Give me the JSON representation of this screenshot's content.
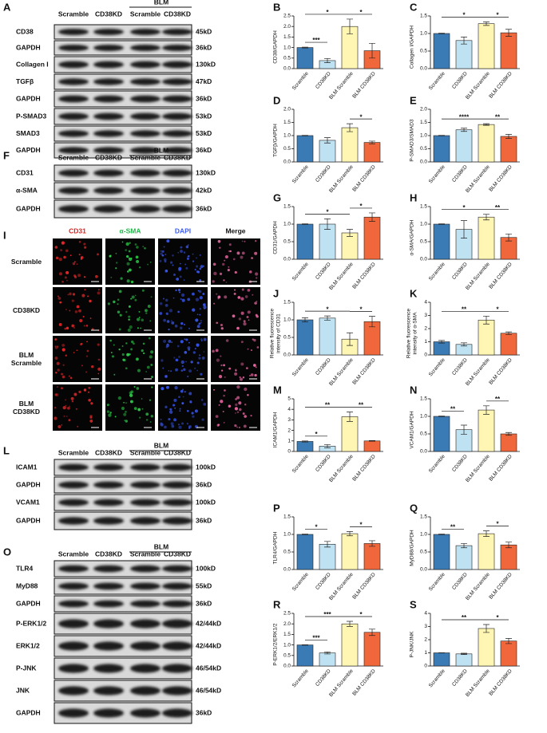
{
  "blots": [
    {
      "label": "A",
      "columns": [
        "Scramble",
        "CD38KD",
        "Scramble",
        "CD38KD"
      ],
      "group": "BLM",
      "rows": [
        {
          "name": "CD38",
          "size": "45kD"
        },
        {
          "name": "GAPDH",
          "size": "36kD"
        },
        {
          "name": "Collagen I",
          "size": "130kD"
        },
        {
          "name": "TGFβ",
          "size": "47kD"
        },
        {
          "name": "GAPDH",
          "size": "36kD"
        },
        {
          "name": "P-SMAD3",
          "size": "53kD"
        },
        {
          "name": "SMAD3",
          "size": "53kD"
        },
        {
          "name": "GAPDH",
          "size": "36kD"
        }
      ]
    },
    {
      "label": "F",
      "columns": [
        "Scramble",
        "CD38KD",
        "Scramble",
        "CD38KD"
      ],
      "group": "BLM",
      "rows": [
        {
          "name": "CD31",
          "size": "130kD"
        },
        {
          "name": "α-SMA",
          "size": "42kD"
        },
        {
          "name": "GAPDH",
          "size": "36kD"
        }
      ]
    },
    {
      "label": "L",
      "columns": [
        "Scramble",
        "CD38KD",
        "Scramble",
        "CD38KD"
      ],
      "group": "BLM",
      "rows": [
        {
          "name": "ICAM1",
          "size": "100kD"
        },
        {
          "name": "GAPDH",
          "size": "36kD"
        },
        {
          "name": "VCAM1",
          "size": "100kD"
        },
        {
          "name": "GAPDH",
          "size": "36kD"
        }
      ]
    },
    {
      "label": "O",
      "columns": [
        "Scramble",
        "CD38KD",
        "Scramble",
        "CD38KD"
      ],
      "group": "BLM",
      "rows": [
        {
          "name": "TLR4",
          "size": "100kD"
        },
        {
          "name": "MyD88",
          "size": "55kD"
        },
        {
          "name": "GAPDH",
          "size": "36kD"
        },
        {
          "name": "P-ERK1/2",
          "size": "42/44kD"
        },
        {
          "name": "ERK1/2",
          "size": "42/44kD"
        },
        {
          "name": "P-JNK",
          "size": "46/54kD"
        },
        {
          "name": "JNK",
          "size": "46/54kD"
        },
        {
          "name": "GAPDH",
          "size": "36kD"
        }
      ]
    }
  ],
  "fluorescence": {
    "label": "I",
    "channels": [
      "CD31",
      "α-SMA",
      "DAPI",
      "Merge"
    ],
    "rows": [
      [
        "Scramble"
      ],
      [
        "CD38KD"
      ],
      [
        "BLM",
        "Scramble"
      ],
      [
        "BLM",
        "CD38KD"
      ]
    ]
  },
  "chart_data": [
    {
      "type": "bar",
      "label": "B",
      "ylabel": [
        "CD38/GAPDH"
      ],
      "categories": [
        "Scramble",
        "CD38KD",
        "BLM Scramble",
        "BLM CD38KD"
      ],
      "values": [
        1.0,
        0.38,
        2.0,
        0.85
      ],
      "errors": [
        0.02,
        0.1,
        0.35,
        0.35
      ],
      "colors": [
        "#3b7bb5",
        "#bfe2f2",
        "#fff6b3",
        "#f0673b"
      ],
      "ylim": [
        0,
        2.5
      ],
      "yticks": [
        {
          "value": 0,
          "label": "0.0"
        },
        0.5,
        {
          "value": 1,
          "label": "1.0"
        },
        1.5,
        {
          "value": 2,
          "label": "2.0"
        },
        2.5
      ],
      "significance": [
        {
          "from": 0,
          "to": 1,
          "label": "***"
        },
        {
          "from": 0,
          "to": 2,
          "label": "*"
        },
        {
          "from": 2,
          "to": 3,
          "label": "*"
        }
      ]
    },
    {
      "type": "bar",
      "label": "C",
      "ylabel": [
        "Collagen I/GAPDH"
      ],
      "categories": [
        "Scramble",
        "CD38KD",
        "BLM Scramble",
        "BLM CD38KD"
      ],
      "values": [
        1.0,
        0.8,
        1.28,
        1.02
      ],
      "errors": [
        0.01,
        0.1,
        0.05,
        0.1
      ],
      "colors": [
        "#3b7bb5",
        "#bfe2f2",
        "#fff6b3",
        "#f0673b"
      ],
      "ylim": [
        0,
        1.5
      ],
      "yticks": [
        {
          "value": 0,
          "label": "0.0"
        },
        0.5,
        {
          "value": 1,
          "label": "1.0"
        },
        1.5
      ],
      "significance": [
        {
          "from": 0,
          "to": 2,
          "label": "*"
        },
        {
          "from": 2,
          "to": 3,
          "label": "*"
        }
      ]
    },
    {
      "type": "bar",
      "label": "D",
      "ylabel": [
        "TGFβ/GAPDH"
      ],
      "categories": [
        "Scramble",
        "CD38KD",
        "BLM Scramble",
        "BLM CD38KD"
      ],
      "values": [
        1.0,
        0.82,
        1.3,
        0.74
      ],
      "errors": [
        0.01,
        0.1,
        0.15,
        0.05
      ],
      "colors": [
        "#3b7bb5",
        "#bfe2f2",
        "#fff6b3",
        "#f0673b"
      ],
      "ylim": [
        0,
        2
      ],
      "yticks": [
        {
          "value": 0,
          "label": "0.0"
        },
        0.5,
        {
          "value": 1,
          "label": "1.0"
        },
        1.5,
        {
          "value": 2,
          "label": "2.0"
        }
      ],
      "significance": [
        {
          "from": 2,
          "to": 3,
          "label": "*"
        }
      ]
    },
    {
      "type": "bar",
      "label": "E",
      "ylabel": [
        "P-SMAD3/SMAD3"
      ],
      "categories": [
        "Scramble",
        "CD38KD",
        "BLM Scramble",
        "BLM CD38KD"
      ],
      "values": [
        1.0,
        1.22,
        1.42,
        0.97
      ],
      "errors": [
        0.01,
        0.06,
        0.03,
        0.08
      ],
      "colors": [
        "#3b7bb5",
        "#bfe2f2",
        "#fff6b3",
        "#f0673b"
      ],
      "ylim": [
        0,
        2
      ],
      "yticks": [
        {
          "value": 0,
          "label": "0.0"
        },
        0.5,
        {
          "value": 1,
          "label": "1.0"
        },
        1.5,
        {
          "value": 2,
          "label": "2.0"
        }
      ],
      "significance": [
        {
          "from": 0,
          "to": 2,
          "label": "****"
        },
        {
          "from": 2,
          "to": 3,
          "label": "**"
        }
      ]
    },
    {
      "type": "bar",
      "label": "G",
      "ylabel": [
        "CD31/GAPDH"
      ],
      "categories": [
        "Scramble",
        "CD38KD",
        "BLM Scramble",
        "BLM CD38KD"
      ],
      "values": [
        1.0,
        1.0,
        0.75,
        1.2
      ],
      "errors": [
        0.01,
        0.15,
        0.1,
        0.12
      ],
      "colors": [
        "#3b7bb5",
        "#bfe2f2",
        "#fff6b3",
        "#f0673b"
      ],
      "ylim": [
        0,
        1.5
      ],
      "yticks": [
        {
          "value": 0,
          "label": "0.0"
        },
        0.5,
        {
          "value": 1,
          "label": "1.0"
        },
        1.5
      ],
      "significance": [
        {
          "from": 0,
          "to": 2,
          "label": "*"
        },
        {
          "from": 2,
          "to": 3,
          "label": "*"
        }
      ]
    },
    {
      "type": "bar",
      "label": "H",
      "ylabel": [
        "α-SMA/GAPDH"
      ],
      "categories": [
        "Scramble",
        "CD38KD",
        "BLM Scramble",
        "BLM CD38KD"
      ],
      "values": [
        1.0,
        0.85,
        1.2,
        0.62
      ],
      "errors": [
        0.01,
        0.25,
        0.08,
        0.1
      ],
      "colors": [
        "#3b7bb5",
        "#bfe2f2",
        "#fff6b3",
        "#f0673b"
      ],
      "ylim": [
        0,
        1.5
      ],
      "yticks": [
        {
          "value": 0,
          "label": "0.0"
        },
        0.5,
        {
          "value": 1,
          "label": "1.0"
        },
        1.5
      ],
      "significance": [
        {
          "from": 0,
          "to": 2,
          "label": "*"
        },
        {
          "from": 2,
          "to": 3,
          "label": "**"
        }
      ]
    },
    {
      "type": "bar",
      "label": "J",
      "ylabel": [
        "Relative fluorescence",
        "intensity of CD31"
      ],
      "categories": [
        "Scramble",
        "CD38KD",
        "BLM Scramble",
        "BLM CD38KD"
      ],
      "values": [
        1.0,
        1.05,
        0.45,
        0.95
      ],
      "errors": [
        0.06,
        0.06,
        0.18,
        0.15
      ],
      "colors": [
        "#3b7bb5",
        "#bfe2f2",
        "#fff6b3",
        "#f0673b"
      ],
      "ylim": [
        0,
        1.5
      ],
      "yticks": [
        {
          "value": 0,
          "label": "0.0"
        },
        0.5,
        {
          "value": 1,
          "label": "1.0"
        },
        1.5
      ],
      "significance": [
        {
          "from": 0,
          "to": 2,
          "label": "*"
        },
        {
          "from": 2,
          "to": 3,
          "label": "*"
        }
      ]
    },
    {
      "type": "bar",
      "label": "K",
      "ylabel": [
        "Relative fluorescence",
        "intensity of α-SMA"
      ],
      "categories": [
        "Scramble",
        "CD38KD",
        "BLM Scramble",
        "BLM CD38KD"
      ],
      "values": [
        1.0,
        0.8,
        2.65,
        1.65
      ],
      "errors": [
        0.1,
        0.12,
        0.3,
        0.1
      ],
      "colors": [
        "#3b7bb5",
        "#bfe2f2",
        "#fff6b3",
        "#f0673b"
      ],
      "ylim": [
        0,
        4
      ],
      "yticks": [
        0,
        1,
        2,
        3,
        4
      ],
      "significance": [
        {
          "from": 0,
          "to": 2,
          "label": "**"
        },
        {
          "from": 2,
          "to": 3,
          "label": "*"
        }
      ]
    },
    {
      "type": "bar",
      "label": "M",
      "ylabel": [
        "ICAM1/GAPDH"
      ],
      "categories": [
        "Scramble",
        "CD38KD",
        "BLM Scramble",
        "BLM CD38KD"
      ],
      "values": [
        0.95,
        0.5,
        3.3,
        1.0
      ],
      "errors": [
        0.05,
        0.15,
        0.45,
        0.03
      ],
      "colors": [
        "#3b7bb5",
        "#bfe2f2",
        "#fff6b3",
        "#f0673b"
      ],
      "ylim": [
        0,
        5
      ],
      "yticks": [
        0,
        1,
        2,
        3,
        4,
        5
      ],
      "significance": [
        {
          "from": 0,
          "to": 1,
          "label": "*"
        },
        {
          "from": 0,
          "to": 2,
          "label": "**"
        },
        {
          "from": 2,
          "to": 3,
          "label": "**"
        }
      ]
    },
    {
      "type": "bar",
      "label": "N",
      "ylabel": [
        "VCAM1/GAPDH"
      ],
      "categories": [
        "Scramble",
        "CD38KD",
        "BLM Scramble",
        "BLM CD38KD"
      ],
      "values": [
        1.0,
        0.62,
        1.18,
        0.5
      ],
      "errors": [
        0.01,
        0.13,
        0.12,
        0.04
      ],
      "colors": [
        "#3b7bb5",
        "#bfe2f2",
        "#fff6b3",
        "#f0673b"
      ],
      "ylim": [
        0,
        1.5
      ],
      "yticks": [
        {
          "value": 0,
          "label": "0.0"
        },
        0.5,
        {
          "value": 1,
          "label": "1.0"
        },
        1.5
      ],
      "significance": [
        {
          "from": 0,
          "to": 1,
          "label": "**"
        },
        {
          "from": 2,
          "to": 3,
          "label": "**"
        }
      ]
    },
    {
      "type": "bar",
      "label": "P",
      "ylabel": [
        "TLR4/GAPDH"
      ],
      "categories": [
        "Scramble",
        "CD38KD",
        "BLM Scramble",
        "BLM CD38KD"
      ],
      "values": [
        1.0,
        0.72,
        1.02,
        0.74
      ],
      "errors": [
        0.01,
        0.08,
        0.06,
        0.08
      ],
      "colors": [
        "#3b7bb5",
        "#bfe2f2",
        "#fff6b3",
        "#f0673b"
      ],
      "ylim": [
        0,
        1.5
      ],
      "yticks": [
        {
          "value": 0,
          "label": "0.0"
        },
        0.5,
        {
          "value": 1,
          "label": "1.0"
        },
        1.5
      ],
      "significance": [
        {
          "from": 0,
          "to": 1,
          "label": "*"
        },
        {
          "from": 2,
          "to": 3,
          "label": "*"
        }
      ]
    },
    {
      "type": "bar",
      "label": "Q",
      "ylabel": [
        "MyD88/GAPDH"
      ],
      "categories": [
        "Scramble",
        "CD38KD",
        "BLM Scramble",
        "BLM CD38KD"
      ],
      "values": [
        1.0,
        0.68,
        1.02,
        0.7
      ],
      "errors": [
        0.01,
        0.06,
        0.08,
        0.08
      ],
      "colors": [
        "#3b7bb5",
        "#bfe2f2",
        "#fff6b3",
        "#f0673b"
      ],
      "ylim": [
        0,
        1.5
      ],
      "yticks": [
        {
          "value": 0,
          "label": "0.0"
        },
        0.5,
        {
          "value": 1,
          "label": "1.0"
        },
        1.5
      ],
      "significance": [
        {
          "from": 0,
          "to": 1,
          "label": "**"
        },
        {
          "from": 2,
          "to": 3,
          "label": "*"
        }
      ]
    },
    {
      "type": "bar",
      "label": "R",
      "ylabel": [
        "P-ERK1/2/ERK1/2"
      ],
      "categories": [
        "Scramble",
        "CD38KD",
        "BLM Scramble",
        "BLM CD38KD"
      ],
      "values": [
        1.0,
        0.62,
        2.0,
        1.6
      ],
      "errors": [
        0.01,
        0.05,
        0.12,
        0.15
      ],
      "colors": [
        "#3b7bb5",
        "#bfe2f2",
        "#fff6b3",
        "#f0673b"
      ],
      "ylim": [
        0,
        2.5
      ],
      "yticks": [
        {
          "value": 0,
          "label": "0.0"
        },
        0.5,
        {
          "value": 1,
          "label": "1.0"
        },
        1.5,
        {
          "value": 2,
          "label": "2.0"
        },
        2.5
      ],
      "significance": [
        {
          "from": 0,
          "to": 1,
          "label": "***"
        },
        {
          "from": 0,
          "to": 2,
          "label": "***"
        },
        {
          "from": 2,
          "to": 3,
          "label": "*"
        }
      ]
    },
    {
      "type": "bar",
      "label": "S",
      "ylabel": [
        "P-JNK/JNK"
      ],
      "categories": [
        "Scramble",
        "CD38KD",
        "BLM Scramble",
        "BLM CD38KD"
      ],
      "values": [
        1.0,
        0.92,
        2.85,
        1.9
      ],
      "errors": [
        0.01,
        0.05,
        0.3,
        0.2
      ],
      "colors": [
        "#3b7bb5",
        "#bfe2f2",
        "#fff6b3",
        "#f0673b"
      ],
      "ylim": [
        0,
        4
      ],
      "yticks": [
        0,
        1,
        2,
        3,
        4
      ],
      "significance": [
        {
          "from": 0,
          "to": 2,
          "label": "**"
        },
        {
          "from": 2,
          "to": 3,
          "label": "*"
        }
      ]
    }
  ]
}
